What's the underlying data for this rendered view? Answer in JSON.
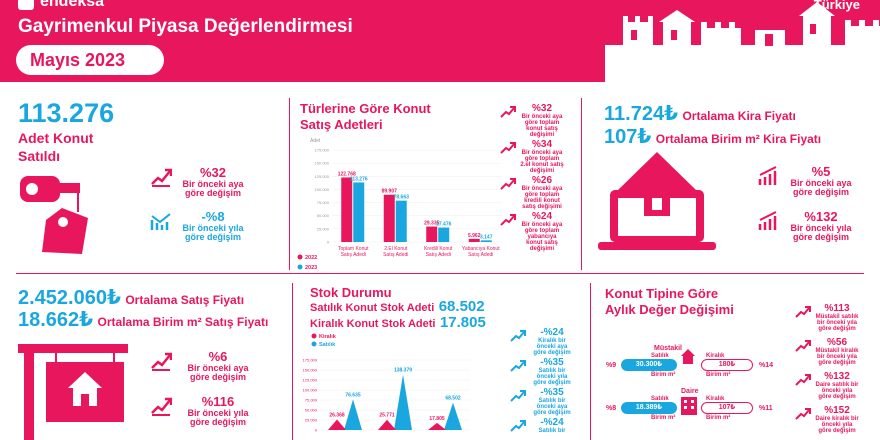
{
  "header": {
    "brand": "endeksa",
    "title": "Gayrimenkul Piyasa Değerlendirmesi",
    "period": "Mayıs 2023",
    "country": "Türkiye"
  },
  "sales": {
    "value": "113.276",
    "label_line1": "Adet Konut",
    "label_line2": "Satıldı",
    "monthly_pct": "%32",
    "monthly_cap_1": "Bir önceki aya",
    "monthly_cap_2": "göre değişim",
    "yearly_pct": "-%8",
    "yearly_cap_1": "Bir önceki yıla",
    "yearly_cap_2": "göre değişim"
  },
  "types": {
    "title_line1": "Türlerine Göre Konut",
    "title_line2": "Satış Adetleri",
    "notes": [
      {
        "pct": "%32",
        "cap": "Bir önceki aya göre toplam konut satış değişimi"
      },
      {
        "pct": "%34",
        "cap": "Bir önceki aya göre toplam 2.el konut satış değişimi"
      },
      {
        "pct": "%26",
        "cap": "Bir önceki aya göre toplam kredili konut satış değişimi"
      },
      {
        "pct": "%24",
        "cap": "Bir önceki aya göre toplam yabancıya konut satış değişimi"
      }
    ]
  },
  "rent": {
    "avg_rent": "11.724₺",
    "avg_rent_label": "Ortalama Kira Fiyatı",
    "unit_rent": "107₺",
    "unit_rent_label": "Ortalama Birim m² Kira Fiyatı",
    "monthly_pct": "%5",
    "monthly_cap_1": "Bir önceki aya",
    "monthly_cap_2": "göre değişim",
    "yearly_pct": "%132",
    "yearly_cap_1": "Bir önceki yıla",
    "yearly_cap_2": "göre değişim"
  },
  "price": {
    "avg_price": "2.452.060₺",
    "avg_price_label": "Ortalama Satış Fiyatı",
    "unit_price": "18.662₺",
    "unit_price_label": "Ortalama Birim m² Satış Fiyatı",
    "monthly_pct": "%6",
    "monthly_cap_1": "Bir önceki aya",
    "monthly_cap_2": "göre değişim",
    "yearly_pct": "%116",
    "yearly_cap_1": "Bir önceki yıla",
    "yearly_cap_2": "göre değişim"
  },
  "stock": {
    "title": "Stok Durumu",
    "sale_label": "Satılık Konut Stok Adeti",
    "sale_value": "68.502",
    "rent_label": "Kiralık Konut Stok Adeti",
    "rent_value": "17.805",
    "notes": [
      {
        "pct": "-%24",
        "cap": "Kiralık bir önceki aya göre değişim"
      },
      {
        "pct": "-%35",
        "cap": "Satılık bir önceki yıla göre değişim"
      },
      {
        "pct": "-%35",
        "cap": "Satılık bir önceki aya göre değişim"
      },
      {
        "pct": "-%24",
        "cap": "Satılık bir"
      }
    ]
  },
  "type_change": {
    "title_line1": "Konut Tipine Göre",
    "title_line2": "Aylık Değer Değişimi",
    "mustakil": {
      "label": "Müstakil",
      "sale_label": "Satılık",
      "sale_value": "30.300₺",
      "sale_unit": "Birim m²",
      "rent_label": "Kiralık",
      "rent_value": "180₺",
      "rent_unit": "Birim m²",
      "left_pct": "%9",
      "right_pct": "%14"
    },
    "daire": {
      "label": "Daire",
      "sale_label": "Satılık",
      "sale_value": "18.389₺",
      "sale_unit": "Birim m²",
      "rent_label": "Kiralık",
      "rent_value": "107₺",
      "rent_unit": "Birim m²",
      "left_pct": "%8",
      "right_pct": "%11"
    },
    "notes": [
      {
        "pct": "%113",
        "cap": "Müstakil satılık bir önceki yıla göre değişim"
      },
      {
        "pct": "%56",
        "cap": "Müstakil kiralık bir önceki yıla göre değişim"
      },
      {
        "pct": "%132",
        "cap": "Daire satılık bir önceki yıla göre değişim"
      },
      {
        "pct": "%152",
        "cap": "Daire kiralık bir önceki yıla göre değişim"
      }
    ]
  },
  "colors": {
    "pink": "#e8175d",
    "blue": "#1aa7e0"
  },
  "chart_data": [
    {
      "type": "bar",
      "title": "",
      "ylabel": "Adet",
      "ylim": [
        0,
        175000
      ],
      "yticks": [
        "175.000",
        "150.000",
        "125.000",
        "100.000",
        "75.000",
        "50.000",
        "25.000",
        "0"
      ],
      "categories": [
        "Toplam Konut Satış Adedi",
        "2.El Konut Satış Adedi",
        "Kredili Konut Satış Adedi",
        "Yabancıya Konut Satış Adedi"
      ],
      "series": [
        {
          "name": "2022",
          "values": [
            122768,
            89907,
            29335,
            5962
          ],
          "labels": [
            "122.768",
            "89.907",
            "29.335",
            "5.962"
          ]
        },
        {
          "name": "2023",
          "values": [
            113276,
            78663,
            27476,
            3147
          ],
          "labels": [
            "113.276",
            "78.663",
            "27.476",
            "3.147"
          ]
        }
      ],
      "legend": "bottom-left"
    },
    {
      "type": "area",
      "title": "",
      "ylim": [
        0,
        175000
      ],
      "yticks": [
        "175.000",
        "150.000",
        "125.000",
        "100.000",
        "75.000",
        "50.000",
        "25.000",
        "0"
      ],
      "series": [
        {
          "name": "Kiralık",
          "values": [
            26368,
            25771,
            17805
          ],
          "labels": [
            "26.368",
            "25.771",
            "17.805"
          ]
        },
        {
          "name": "Satılık",
          "values": [
            76635,
            138379,
            68502
          ],
          "labels": [
            "76.635",
            "138.379",
            "68.502"
          ]
        }
      ],
      "legend": "top-left"
    }
  ]
}
